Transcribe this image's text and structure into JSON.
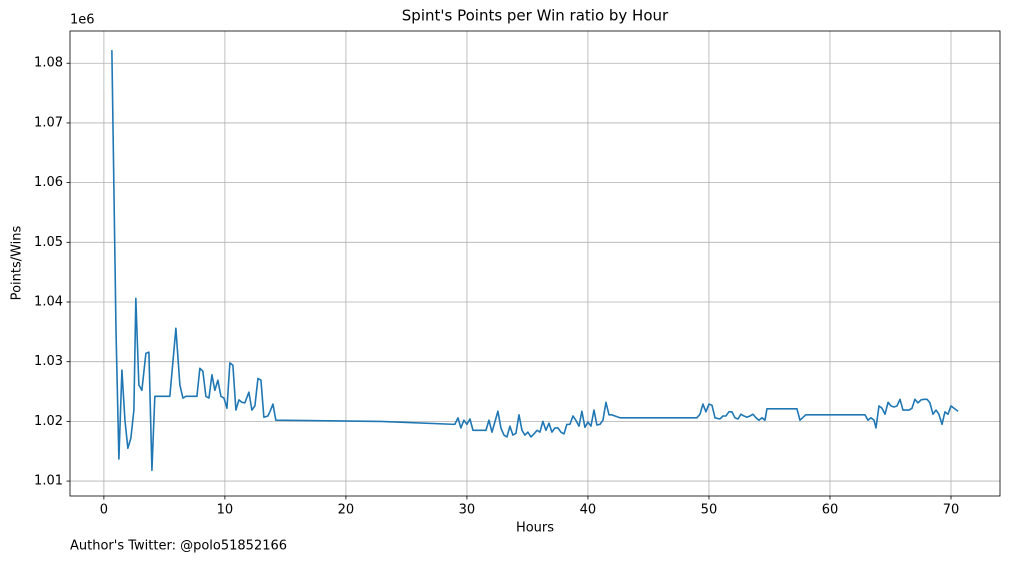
{
  "chart_data": {
    "type": "line",
    "title": "Spint's Points per Win ratio by Hour",
    "x_label": "Hours",
    "y_label": "Points/Wins",
    "y_offset_label": "1e6",
    "footnote": "Author's Twitter: @polo51852166",
    "color": "#1f77b4",
    "grid": true,
    "xlim": [
      -2.8,
      74.05
    ],
    "ylim": [
      1.0075,
      1.0854
    ],
    "xticks": [
      0,
      10,
      20,
      30,
      40,
      50,
      60,
      70
    ],
    "yticks": [
      1.01,
      1.02,
      1.03,
      1.04,
      1.05,
      1.06,
      1.07,
      1.08
    ],
    "x": [
      0.66,
      1.0,
      1.24,
      1.49,
      1.74,
      1.98,
      2.23,
      2.48,
      2.64,
      2.89,
      3.14,
      3.47,
      3.72,
      3.97,
      4.21,
      5.45,
      5.95,
      6.28,
      6.53,
      6.78,
      7.69,
      7.93,
      8.18,
      8.43,
      8.68,
      8.93,
      9.17,
      9.42,
      9.67,
      9.92,
      10.17,
      10.41,
      10.66,
      10.91,
      11.16,
      11.4,
      11.65,
      11.98,
      12.23,
      12.48,
      12.73,
      12.98,
      13.22,
      13.55,
      13.72,
      13.97,
      14.21,
      22.8,
      29.0,
      29.26,
      29.5,
      29.75,
      30.0,
      30.25,
      30.5,
      31.57,
      31.82,
      32.07,
      32.31,
      32.56,
      32.81,
      33.06,
      33.31,
      33.55,
      33.8,
      34.05,
      34.3,
      34.55,
      34.79,
      35.04,
      35.29,
      35.54,
      35.79,
      36.03,
      36.28,
      36.53,
      36.78,
      37.02,
      37.27,
      37.52,
      37.77,
      38.02,
      38.26,
      38.51,
      38.76,
      39.0,
      39.26,
      39.5,
      39.75,
      40.0,
      40.25,
      40.5,
      40.74,
      40.99,
      41.24,
      41.49,
      41.74,
      41.98,
      42.64,
      49.0,
      49.26,
      49.5,
      49.75,
      50.0,
      50.25,
      50.5,
      50.9,
      51.16,
      51.4,
      51.65,
      51.9,
      52.15,
      52.4,
      52.64,
      52.9,
      53.14,
      53.39,
      53.64,
      53.88,
      54.13,
      54.38,
      54.63,
      54.79,
      57.27,
      57.52,
      58.0,
      62.9,
      63.14,
      63.39,
      63.64,
      63.8,
      64.05,
      64.3,
      64.55,
      64.8,
      65.04,
      65.29,
      65.54,
      65.79,
      66.03,
      66.28,
      66.53,
      66.78,
      67.02,
      67.27,
      67.52,
      67.77,
      68.02,
      68.26,
      68.51,
      68.76,
      69.0,
      69.26,
      69.5,
      69.75,
      70.0,
      70.25,
      70.58
    ],
    "values": [
      1.0822,
      1.0353,
      1.0137,
      1.0286,
      1.0202,
      1.0155,
      1.0172,
      1.0219,
      1.0406,
      1.0261,
      1.0252,
      1.0314,
      1.0316,
      1.0118,
      1.0242,
      1.0242,
      1.0356,
      1.0261,
      1.0239,
      1.0242,
      1.0242,
      1.0289,
      1.0284,
      1.0242,
      1.0239,
      1.0278,
      1.0252,
      1.0269,
      1.0242,
      1.0239,
      1.0222,
      1.0298,
      1.0294,
      1.0219,
      1.0236,
      1.0232,
      1.0231,
      1.0249,
      1.0219,
      1.0226,
      1.0272,
      1.0269,
      1.0207,
      1.0209,
      1.0216,
      1.0229,
      1.0202,
      1.02,
      1.0195,
      1.0206,
      1.0189,
      1.0202,
      1.0195,
      1.0204,
      1.0185,
      1.0185,
      1.0202,
      1.0182,
      1.0199,
      1.0217,
      1.0189,
      1.0177,
      1.0174,
      1.0192,
      1.0177,
      1.018,
      1.0211,
      1.0185,
      1.0177,
      1.0182,
      1.0174,
      1.0179,
      1.0185,
      1.0182,
      1.02,
      1.0185,
      1.0197,
      1.0182,
      1.0189,
      1.0189,
      1.0182,
      1.0179,
      1.0195,
      1.0195,
      1.0209,
      1.0202,
      1.0192,
      1.0217,
      1.019,
      1.0199,
      1.0192,
      1.0219,
      1.0194,
      1.0195,
      1.0202,
      1.0232,
      1.0211,
      1.0211,
      1.0206,
      1.0206,
      1.0212,
      1.0229,
      1.0216,
      1.0229,
      1.0227,
      1.0206,
      1.0204,
      1.0209,
      1.0209,
      1.0216,
      1.0216,
      1.0206,
      1.0204,
      1.0212,
      1.0209,
      1.0207,
      1.0209,
      1.0212,
      1.0206,
      1.0202,
      1.0206,
      1.0202,
      1.0221,
      1.0221,
      1.0202,
      1.0211,
      1.0211,
      1.0202,
      1.0206,
      1.0202,
      1.0189,
      1.0226,
      1.0222,
      1.0212,
      1.0232,
      1.0226,
      1.0224,
      1.0226,
      1.0237,
      1.0219,
      1.0219,
      1.0219,
      1.0222,
      1.0237,
      1.0231,
      1.0236,
      1.0237,
      1.0237,
      1.0231,
      1.0212,
      1.0219,
      1.0212,
      1.0195,
      1.0216,
      1.0212,
      1.0226,
      1.0222,
      1.0217
    ]
  }
}
